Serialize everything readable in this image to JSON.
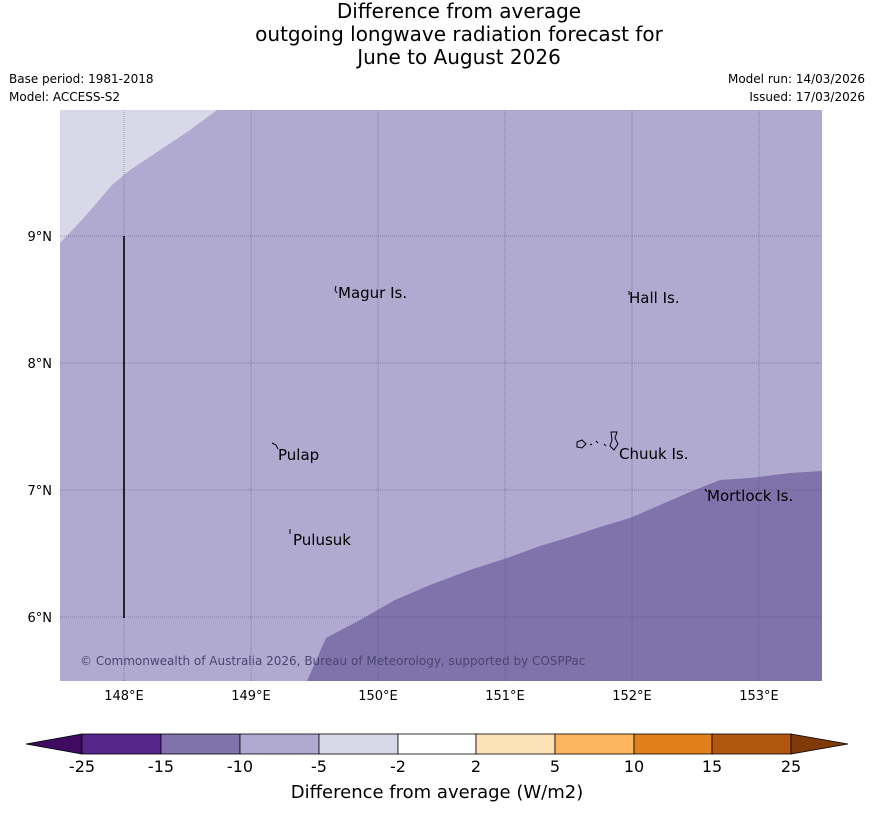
{
  "title": {
    "line1": "Difference from average",
    "line2": "outgoing longwave radiation forecast for",
    "line3": "June to August 2026"
  },
  "meta": {
    "base_period": "Base period: 1981-2018",
    "model": "Model: ACCESS-S2",
    "model_run": "Model run: 14/03/2026",
    "issued": "Issued: 17/03/2026"
  },
  "map": {
    "lon_labels": [
      "148°E",
      "149°E",
      "150°E",
      "151°E",
      "152°E",
      "153°E"
    ],
    "lat_labels": [
      "9°N",
      "8°N",
      "7°N",
      "6°N"
    ],
    "places": [
      "Magur Is.",
      "Hall Is.",
      "Pulap",
      "Chuuk Is.",
      "Mortlock Is.",
      "Pulusuk"
    ],
    "copyright": "© Commonwealth of Australia 2026, Bureau of Meteorology, supported by COSPPac",
    "fill_colors": {
      "neg_minus_5_to_minus_2": "#d8d8e9",
      "neg_minus_10_to_minus_5": "#b0aad1",
      "neg_minus_15_to_minus_10": "#8072ab"
    }
  },
  "colorbar": {
    "label": "Difference from average (W/m2)",
    "ticks": [
      "-25",
      "-15",
      "-10",
      "-5",
      "-2",
      "2",
      "5",
      "10",
      "15",
      "25"
    ],
    "colors": [
      "#3f0b60",
      "#55258b",
      "#8072ab",
      "#b0aad1",
      "#d8d8e9",
      "#ffffff",
      "#fde1b6",
      "#fbb65d",
      "#e07f1b",
      "#b0570d",
      "#7f3a08"
    ]
  }
}
